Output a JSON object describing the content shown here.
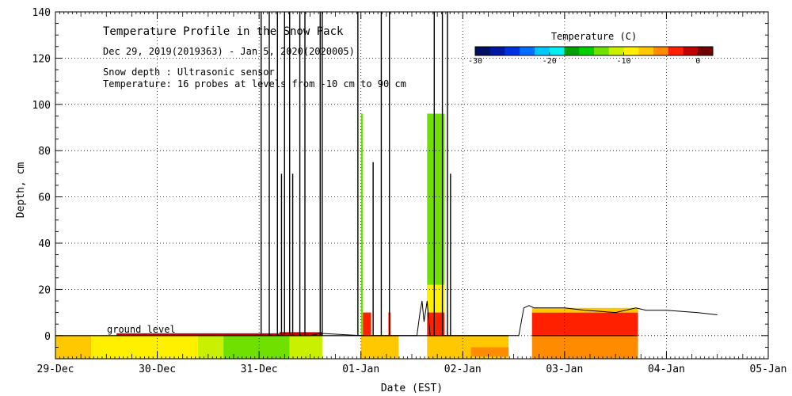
{
  "chart_data": {
    "type": "heatmap",
    "title": "Temperature Profile in the Snow Pack",
    "subtitle": "Dec 29, 2019(2019363) - Jan  5, 2020(2020005)",
    "notes": [
      "Snow depth : Ultrasonic sensor",
      "Temperature: 16 probes at levels from -10 cm to 90 cm"
    ],
    "xlabel": "Date (EST)",
    "ylabel": "Depth, cm",
    "xlim": [
      0,
      7
    ],
    "ylim": [
      -10,
      140
    ],
    "x_tick_labels": [
      "29-Dec",
      "30-Dec",
      "31-Dec",
      "01-Jan",
      "02-Jan",
      "03-Jan",
      "04-Jan",
      "05-Jan"
    ],
    "y_tick_values": [
      0,
      20,
      40,
      60,
      80,
      100,
      120,
      140
    ],
    "grid": true,
    "annotation": "ground level",
    "colorbar": {
      "label": "Temperature (C)",
      "range": [
        -30,
        2
      ],
      "tick_values": [
        -30,
        -20,
        -10,
        0
      ],
      "tick_labels": [
        "-30",
        "-20",
        "-10",
        "0"
      ],
      "colors": [
        "#001060",
        "#0018a0",
        "#0030e0",
        "#0070ff",
        "#00c8ff",
        "#00f0f0",
        "#00a000",
        "#00d000",
        "#70e000",
        "#c8f000",
        "#fff000",
        "#ffc800",
        "#ff8c00",
        "#ff2000",
        "#c00000",
        "#700000"
      ]
    },
    "temperature_blocks": [
      {
        "x0": 0.0,
        "x1": 0.35,
        "y0": -10,
        "y1": 0,
        "color": "#ffc800"
      },
      {
        "x0": 0.35,
        "x1": 1.4,
        "y0": -10,
        "y1": 0,
        "color": "#fff000"
      },
      {
        "x0": 1.4,
        "x1": 1.65,
        "y0": -10,
        "y1": 0,
        "color": "#c8f000"
      },
      {
        "x0": 1.65,
        "x1": 2.3,
        "y0": -10,
        "y1": 0,
        "color": "#70e000"
      },
      {
        "x0": 2.3,
        "x1": 2.62,
        "y0": -10,
        "y1": 0,
        "color": "#c8f000"
      },
      {
        "x0": 0.6,
        "x1": 2.2,
        "y0": 0,
        "y1": 1,
        "color": "#c00000"
      },
      {
        "x0": 2.2,
        "x1": 2.62,
        "y0": 0,
        "y1": 1.5,
        "color": "#c00000"
      },
      {
        "x0": 3.0,
        "x1": 3.37,
        "y0": -10,
        "y1": 0,
        "color": "#ffc800"
      },
      {
        "x0": 3.0,
        "x1": 3.02,
        "y0": 0,
        "y1": 96,
        "color": "#70e000"
      },
      {
        "x0": 3.02,
        "x1": 3.1,
        "y0": 0,
        "y1": 10,
        "color": "#ff2000"
      },
      {
        "x0": 3.27,
        "x1": 3.29,
        "y0": 0,
        "y1": 10,
        "color": "#ff2000"
      },
      {
        "x0": 3.65,
        "x1": 4.45,
        "y0": -10,
        "y1": 0,
        "color": "#ffc800"
      },
      {
        "x0": 3.65,
        "x1": 3.82,
        "y0": 10,
        "y1": 96,
        "color": "#70e000"
      },
      {
        "x0": 3.65,
        "x1": 3.82,
        "y0": 10,
        "y1": 22,
        "color": "#fff000"
      },
      {
        "x0": 3.65,
        "x1": 3.82,
        "y0": 0,
        "y1": 10,
        "color": "#ff2000"
      },
      {
        "x0": 4.08,
        "x1": 4.45,
        "y0": -9,
        "y1": -5,
        "color": "#ff8c00"
      },
      {
        "x0": 4.68,
        "x1": 5.72,
        "y0": -10,
        "y1": 0,
        "color": "#ff8c00"
      },
      {
        "x0": 4.68,
        "x1": 5.72,
        "y0": 0,
        "y1": 10,
        "color": "#ff2000"
      },
      {
        "x0": 4.68,
        "x1": 5.72,
        "y0": 10,
        "y1": 12,
        "color": "#ffc800"
      }
    ],
    "snow_depth_trace": [
      [
        2.3,
        0
      ],
      [
        2.5,
        0
      ],
      [
        2.6,
        1
      ],
      [
        3.0,
        0
      ],
      [
        3.5,
        0
      ],
      [
        3.55,
        0
      ],
      [
        3.58,
        10
      ],
      [
        3.6,
        15
      ],
      [
        3.62,
        6
      ],
      [
        3.65,
        15
      ],
      [
        3.68,
        0
      ],
      [
        4.45,
        0
      ],
      [
        4.55,
        0
      ],
      [
        4.6,
        12
      ],
      [
        4.65,
        13
      ],
      [
        4.7,
        12
      ],
      [
        5.0,
        12
      ],
      [
        5.2,
        11
      ],
      [
        5.5,
        10
      ],
      [
        5.7,
        12
      ],
      [
        5.8,
        11
      ],
      [
        6.0,
        11
      ],
      [
        6.3,
        10
      ],
      [
        6.5,
        9
      ]
    ],
    "spikes": [
      {
        "x": 2.02,
        "top": 140
      },
      {
        "x": 2.1,
        "top": 140
      },
      {
        "x": 2.18,
        "top": 140
      },
      {
        "x": 2.22,
        "top": 70
      },
      {
        "x": 2.25,
        "top": 140
      },
      {
        "x": 2.3,
        "top": 140
      },
      {
        "x": 2.33,
        "top": 70
      },
      {
        "x": 2.4,
        "top": 140
      },
      {
        "x": 2.45,
        "top": 140
      },
      {
        "x": 2.6,
        "top": 140
      },
      {
        "x": 2.62,
        "top": 140
      },
      {
        "x": 2.97,
        "top": 140
      },
      {
        "x": 3.12,
        "top": 75
      },
      {
        "x": 3.2,
        "top": 140
      },
      {
        "x": 3.28,
        "top": 140
      },
      {
        "x": 3.72,
        "top": 140
      },
      {
        "x": 3.8,
        "top": 140
      },
      {
        "x": 3.85,
        "top": 140
      },
      {
        "x": 3.88,
        "top": 70
      }
    ]
  }
}
